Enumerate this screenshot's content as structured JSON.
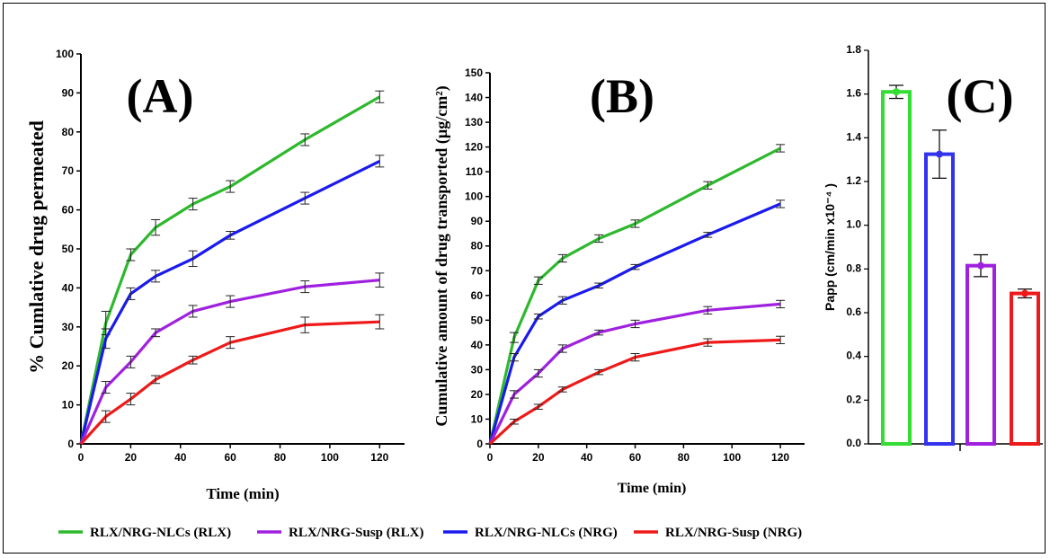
{
  "chart_data": [
    {
      "type": "line",
      "panel_label": "(A)",
      "xlabel": "Time (min)",
      "ylabel": "% Cumlative drug permeated",
      "xlim": [
        0,
        130
      ],
      "ylim": [
        0,
        100
      ],
      "xticks": [
        0,
        20,
        40,
        60,
        80,
        100,
        120
      ],
      "yticks": [
        0,
        10,
        20,
        30,
        40,
        50,
        60,
        70,
        80,
        90,
        100
      ],
      "x": [
        0,
        10,
        20,
        30,
        45,
        60,
        90,
        120
      ],
      "series": [
        {
          "name": "RLX/NRG-NLCs (RLX)",
          "color": "#2db82d",
          "values": [
            0,
            31,
            48.5,
            55.5,
            61.5,
            66,
            78,
            89
          ],
          "errors": [
            0,
            3,
            1.5,
            2,
            1.5,
            1.5,
            1.5,
            1.5
          ]
        },
        {
          "name": "RLX/NRG-NLCs (NRG)",
          "color": "#1a1aee",
          "values": [
            0,
            27,
            38.5,
            43,
            47.5,
            53.5,
            63,
            72.5
          ],
          "errors": [
            0,
            2.5,
            1.5,
            1.5,
            2,
            1,
            1.5,
            1.5
          ]
        },
        {
          "name": "RLX/NRG-Susp (RLX)",
          "color": "#a020e0",
          "values": [
            0,
            14.5,
            21,
            28.5,
            34,
            36.5,
            40.3,
            42
          ],
          "errors": [
            0,
            1.5,
            1.5,
            1,
            1.5,
            1.5,
            1.5,
            1.8
          ]
        },
        {
          "name": "RLX/NRG-Susp (NRG)",
          "color": "#ee1a1a",
          "values": [
            0,
            7,
            11.5,
            16.5,
            21.5,
            26,
            30.5,
            31.3
          ],
          "errors": [
            0,
            1.5,
            1.5,
            1,
            1,
            1.5,
            2,
            1.8
          ]
        }
      ]
    },
    {
      "type": "line",
      "panel_label": "(B)",
      "xlabel": "Time (min)",
      "ylabel": "Cumulative amount of drug transported (µg/cm²)",
      "xlim": [
        0,
        130
      ],
      "ylim": [
        0,
        150
      ],
      "xticks": [
        0,
        20,
        40,
        60,
        80,
        100,
        120
      ],
      "yticks": [
        0,
        10,
        20,
        30,
        40,
        50,
        60,
        70,
        80,
        90,
        100,
        110,
        120,
        130,
        140,
        150
      ],
      "x": [
        0,
        10,
        20,
        30,
        45,
        60,
        90,
        120
      ],
      "series": [
        {
          "name": "RLX/NRG-NLCs (RLX)",
          "color": "#2db82d",
          "values": [
            0,
            43,
            66,
            75,
            83,
            89,
            104.5,
            119.5
          ],
          "errors": [
            0,
            2,
            1.5,
            1.5,
            1.5,
            1.5,
            1.5,
            1.5
          ]
        },
        {
          "name": "RLX/NRG-NLCs (NRG)",
          "color": "#1a1aee",
          "values": [
            0,
            35,
            51.5,
            58,
            64,
            71.5,
            84.5,
            97
          ],
          "errors": [
            0,
            1.5,
            1,
            1.5,
            1,
            1,
            1,
            1.5
          ]
        },
        {
          "name": "RLX/NRG-Susp (RLX)",
          "color": "#a020e0",
          "values": [
            0,
            20,
            28.5,
            38.5,
            45,
            48.5,
            54,
            56.5
          ],
          "errors": [
            0,
            1.5,
            1.5,
            1.5,
            1,
            1.5,
            1.5,
            1.5
          ]
        },
        {
          "name": "RLX/NRG-Susp (NRG)",
          "color": "#ee1a1a",
          "values": [
            0,
            9,
            15,
            22,
            29,
            35,
            41,
            42
          ],
          "errors": [
            0,
            1,
            1,
            1,
            1,
            1.5,
            1.5,
            1.5
          ]
        }
      ]
    },
    {
      "type": "bar",
      "panel_label": "(C)",
      "ylabel": "Papp (cm/min x10⁻⁴ )",
      "ylim": [
        0,
        1.8
      ],
      "yticks": [
        0.0,
        0.2,
        0.4,
        0.6,
        0.8,
        1.0,
        1.2,
        1.4,
        1.6,
        1.8
      ],
      "ytick_labels": [
        "0.0",
        "0.2",
        "0.4",
        "0.6",
        "0.8",
        "1.0",
        "1.2",
        "1.4",
        "1.6",
        "1.8"
      ],
      "bars": [
        {
          "color": "#33dd33",
          "value": 1.61,
          "error": 0.03
        },
        {
          "color": "#3333ee",
          "value": 1.325,
          "error": 0.11
        },
        {
          "color": "#a020e0",
          "value": 0.815,
          "error": 0.05
        },
        {
          "color": "#ee1a1a",
          "value": 0.688,
          "error": 0.02
        }
      ]
    }
  ],
  "legend": [
    {
      "label": "RLX/NRG-NLCs (RLX)",
      "color": "#2db82d"
    },
    {
      "label": "RLX/NRG-Susp (RLX)",
      "color": "#a020e0"
    },
    {
      "label": "RLX/NRG-NLCs (NRG)",
      "color": "#1a1aee"
    },
    {
      "label": "RLX/NRG-Susp (NRG)",
      "color": "#ee1a1a"
    }
  ]
}
